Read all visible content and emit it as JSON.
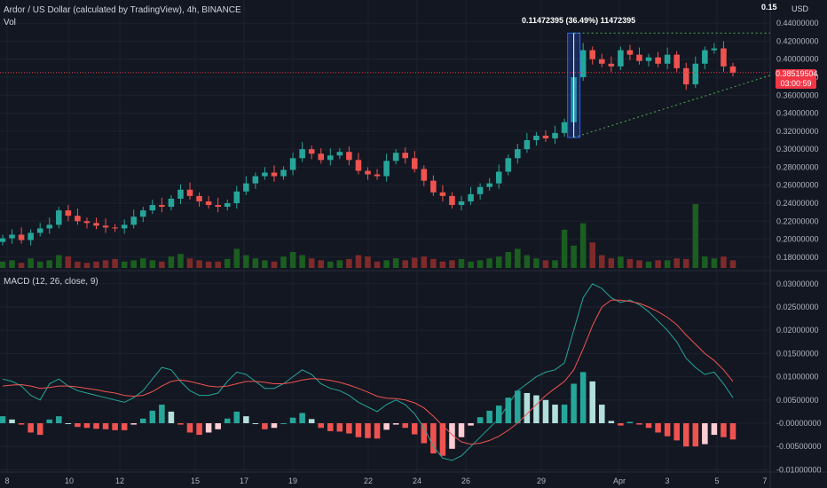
{
  "header": {
    "symbol_title": "Ardor / US Dollar (calculated by TradingView), 4h, BINANCE",
    "volume_label": "Vol",
    "macd_label": "MACD (12, 26, close, 9)",
    "currency": "USD",
    "top_value": "0.15",
    "last_price": "0.38519504",
    "countdown": "03:00:59",
    "measure_label": "0.11472395 (36.49%) 11472395"
  },
  "colors": {
    "background": "#131722",
    "up": "#26a69a",
    "down": "#ef5350",
    "macd_line": "#26a69a",
    "signal_line": "#ef5350",
    "grid": "#1e222d"
  },
  "chart_data": [
    {
      "type": "candlestick",
      "title": "Ardor / US Dollar (calculated by TradingView), 4h, BINANCE",
      "y_ticks": [
        "0.44000000",
        "0.42000000",
        "0.40000000",
        "0.38000000",
        "0.36000000",
        "0.34000000",
        "0.32000000",
        "0.30000000",
        "0.28000000",
        "0.26000000",
        "0.24000000",
        "0.22000000",
        "0.20000000",
        "0.18000000"
      ],
      "ylim": [
        0.17,
        0.45
      ],
      "x_ticks": [
        "8",
        "10",
        "12",
        "15",
        "17",
        "19",
        "22",
        "24",
        "26",
        "29",
        "Apr",
        "3",
        "5",
        "7"
      ],
      "close_approx": [
        0.201,
        0.205,
        0.199,
        0.207,
        0.212,
        0.216,
        0.232,
        0.226,
        0.22,
        0.218,
        0.215,
        0.213,
        0.212,
        0.216,
        0.225,
        0.232,
        0.238,
        0.236,
        0.245,
        0.255,
        0.248,
        0.242,
        0.238,
        0.236,
        0.24,
        0.253,
        0.262,
        0.27,
        0.274,
        0.27,
        0.277,
        0.29,
        0.3,
        0.295,
        0.288,
        0.293,
        0.297,
        0.288,
        0.276,
        0.272,
        0.27,
        0.287,
        0.296,
        0.29,
        0.278,
        0.265,
        0.252,
        0.248,
        0.238,
        0.242,
        0.25,
        0.258,
        0.262,
        0.275,
        0.29,
        0.3,
        0.31,
        0.315,
        0.312,
        0.318,
        0.33,
        0.38,
        0.41,
        0.4,
        0.395,
        0.392,
        0.41,
        0.405,
        0.398,
        0.402,
        0.395,
        0.405,
        0.39,
        0.372,
        0.395,
        0.41,
        0.412,
        0.392,
        0.385
      ],
      "annotations": {
        "measure_range": [
          0.313,
          0.429
        ],
        "measure_text": "0.11472395 (36.49%) 11472395",
        "resistance_level": 0.429,
        "support_trendline": [
          0.313,
          0.385
        ],
        "last_price": 0.38519504
      }
    },
    {
      "type": "bar",
      "title": "Vol",
      "series": [
        {
          "values_relative": [
            0.1,
            0.12,
            0.08,
            0.15,
            0.1,
            0.12,
            0.2,
            0.18,
            0.1,
            0.08,
            0.1,
            0.12,
            0.14,
            0.1,
            0.12,
            0.15,
            0.12,
            0.1,
            0.18,
            0.22,
            0.15,
            0.12,
            0.1,
            0.1,
            0.14,
            0.3,
            0.2,
            0.15,
            0.12,
            0.1,
            0.18,
            0.25,
            0.2,
            0.15,
            0.12,
            0.1,
            0.12,
            0.14,
            0.2,
            0.18,
            0.1,
            0.12,
            0.15,
            0.12,
            0.16,
            0.18,
            0.14,
            0.1,
            0.12,
            0.14,
            0.1,
            0.12,
            0.15,
            0.18,
            0.25,
            0.3,
            0.2,
            0.15,
            0.12,
            0.12,
            0.6,
            0.35,
            0.7,
            0.4,
            0.2,
            0.15,
            0.18,
            0.14,
            0.12,
            0.1,
            0.12,
            0.12,
            0.15,
            0.14,
            1.0,
            0.18,
            0.15,
            0.18,
            0.12
          ]
        }
      ]
    },
    {
      "type": "line",
      "title": "MACD (12, 26, close, 9)",
      "y_ticks": [
        "0.03000000",
        "0.02500000",
        "0.02000000",
        "0.01500000",
        "0.01000000",
        "0.00500000",
        "-0.00000000",
        "-0.00500000",
        "-0.01000000"
      ],
      "ylim": [
        -0.0105,
        0.0315
      ],
      "x_ticks": [
        "8",
        "10",
        "12",
        "15",
        "17",
        "19",
        "22",
        "24",
        "26",
        "29",
        "Apr",
        "3",
        "5",
        "7"
      ],
      "series": [
        {
          "name": "MACD",
          "values": [
            0.0095,
            0.009,
            0.008,
            0.006,
            0.005,
            0.0085,
            0.0095,
            0.008,
            0.007,
            0.0065,
            0.006,
            0.0055,
            0.005,
            0.0045,
            0.0055,
            0.007,
            0.0095,
            0.012,
            0.0115,
            0.009,
            0.007,
            0.006,
            0.006,
            0.0065,
            0.009,
            0.011,
            0.0105,
            0.009,
            0.0075,
            0.0075,
            0.0085,
            0.01,
            0.0115,
            0.0105,
            0.0085,
            0.0075,
            0.007,
            0.006,
            0.0045,
            0.0035,
            0.0025,
            0.004,
            0.005,
            0.004,
            0.002,
            -0.001,
            -0.005,
            -0.0075,
            -0.008,
            -0.007,
            -0.005,
            -0.003,
            -0.001,
            0.001,
            0.004,
            0.007,
            0.0085,
            0.01,
            0.011,
            0.0115,
            0.013,
            0.02,
            0.027,
            0.03,
            0.029,
            0.027,
            0.026,
            0.0265,
            0.0255,
            0.024,
            0.022,
            0.02,
            0.0175,
            0.014,
            0.012,
            0.0105,
            0.011,
            0.0085,
            0.0055
          ]
        },
        {
          "name": "Signal",
          "values": [
            0.008,
            0.0082,
            0.0083,
            0.008,
            0.0075,
            0.0077,
            0.008,
            0.008,
            0.0078,
            0.0075,
            0.0072,
            0.0068,
            0.0065,
            0.006,
            0.0058,
            0.006,
            0.0068,
            0.008,
            0.009,
            0.0093,
            0.009,
            0.0085,
            0.008,
            0.0078,
            0.008,
            0.0085,
            0.009,
            0.009,
            0.0088,
            0.0085,
            0.0085,
            0.0088,
            0.0093,
            0.0096,
            0.0095,
            0.0092,
            0.0088,
            0.0082,
            0.0075,
            0.0067,
            0.0058,
            0.0054,
            0.0053,
            0.005,
            0.0044,
            0.0033,
            0.0015,
            -0.0005,
            -0.0025,
            -0.004,
            -0.0045,
            -0.0043,
            -0.0037,
            -0.0028,
            -0.0015,
            0.0,
            0.002,
            0.004,
            0.006,
            0.0075,
            0.009,
            0.0115,
            0.016,
            0.021,
            0.025,
            0.0265,
            0.0265,
            0.0262,
            0.0258,
            0.025,
            0.024,
            0.0228,
            0.0212,
            0.019,
            0.017,
            0.015,
            0.0135,
            0.0115,
            0.009
          ]
        }
      ]
    }
  ]
}
